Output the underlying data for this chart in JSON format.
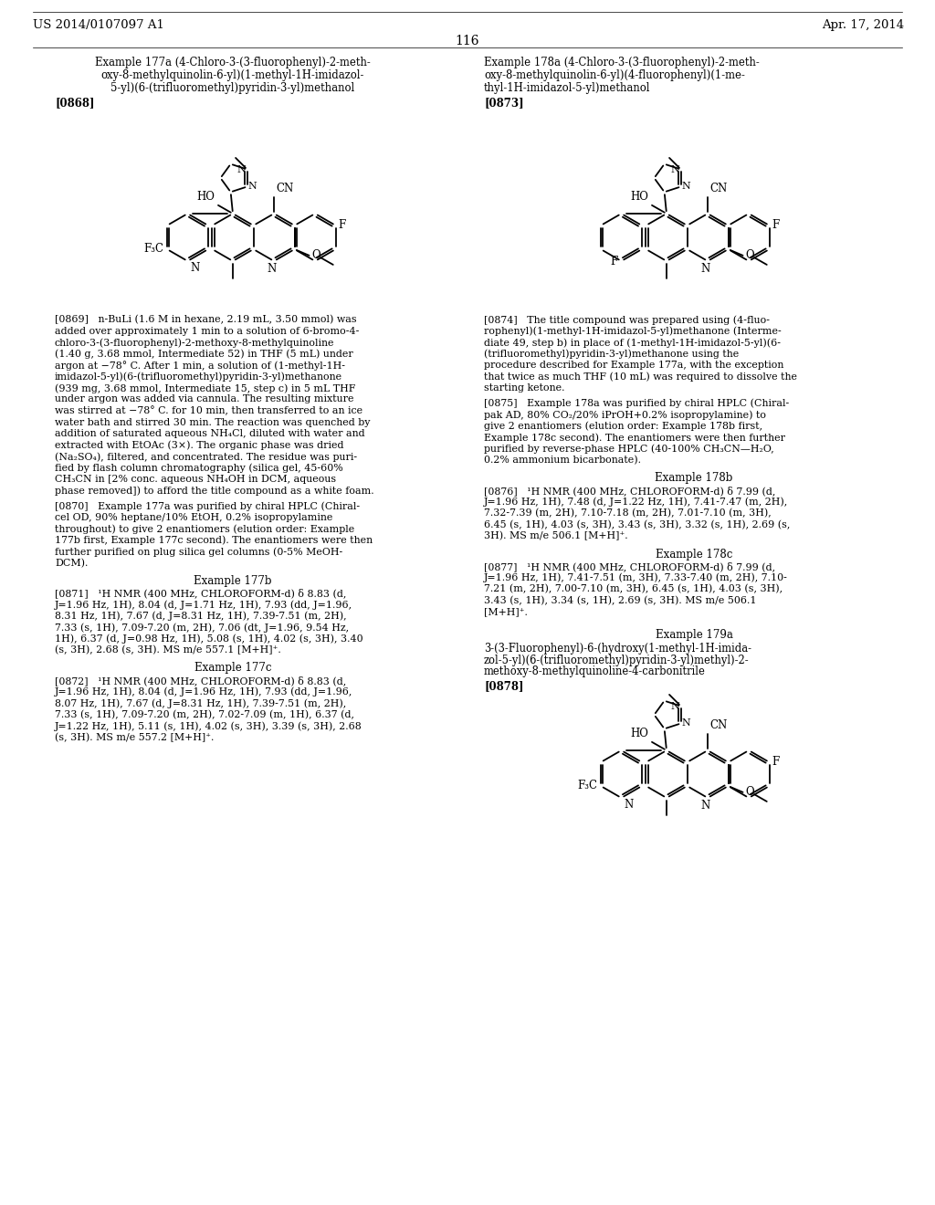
{
  "bg_color": "#ffffff",
  "header_left": "US 2014/0107097 A1",
  "header_right": "Apr. 17, 2014",
  "page_number": "116",
  "left_title_lines": [
    "Example 177a (4-Chloro-3-(3-fluorophenyl)-2-meth-",
    "oxy-8-methylquinolin-6-yl)(1-methyl-1H-imidazol-",
    "5-yl)(6-(trifluoromethyl)pyridin-3-yl)methanol"
  ],
  "left_tag": "[0868]",
  "right_title_lines": [
    "Example 178a (4-Chloro-3-(3-fluorophenyl)-2-meth-",
    "oxy-8-methylquinolin-6-yl)(4-fluorophenyl)(1-me-",
    "thyl-1H-imidazol-5-yl)methanol"
  ],
  "right_tag": "[0873]",
  "para_0869_lines": [
    "[0869]   n-BuLi (1.6 M in hexane, 2.19 mL, 3.50 mmol) was",
    "added over approximately 1 min to a solution of 6-bromo-4-",
    "chloro-3-(3-fluorophenyl)-2-methoxy-8-methylquinoline",
    "(1.40 g, 3.68 mmol, Intermediate 52) in THF (5 mL) under",
    "argon at −78° C. After 1 min, a solution of (1-methyl-1H-",
    "imidazol-5-yl)(6-(trifluoromethyl)pyridin-3-yl)methanone",
    "(939 mg, 3.68 mmol, Intermediate 15, step c) in 5 mL THF",
    "under argon was added via cannula. The resulting mixture",
    "was stirred at −78° C. for 10 min, then transferred to an ice",
    "water bath and stirred 30 min. The reaction was quenched by",
    "addition of saturated aqueous NH₄Cl, diluted with water and",
    "extracted with EtOAc (3×). The organic phase was dried",
    "(Na₂SO₄), filtered, and concentrated. The residue was puri-",
    "fied by flash column chromatography (silica gel, 45-60%",
    "CH₃CN in [2% conc. aqueous NH₄OH in DCM, aqueous",
    "phase removed]) to afford the title compound as a white foam."
  ],
  "para_0870_lines": [
    "[0870]   Example 177a was purified by chiral HPLC (Chiral-",
    "cel OD, 90% heptane/10% EtOH, 0.2% isopropylamine",
    "throughout) to give 2 enantiomers (elution order: Example",
    "177b first, Example 177c second). The enantiomers were then",
    "further purified on plug silica gel columns (0-5% MeOH-",
    "DCM)."
  ],
  "ex177b_title": "Example 177b",
  "para_0871_lines": [
    "[0871]   ¹H NMR (400 MHz, CHLOROFORM-d) δ 8.83 (d,",
    "J=1.96 Hz, 1H), 8.04 (d, J=1.71 Hz, 1H), 7.93 (dd, J=1.96,",
    "8.31 Hz, 1H), 7.67 (d, J=8.31 Hz, 1H), 7.39-7.51 (m, 2H),",
    "7.33 (s, 1H), 7.09-7.20 (m, 2H), 7.06 (dt, J=1.96, 9.54 Hz,",
    "1H), 6.37 (d, J=0.98 Hz, 1H), 5.08 (s, 1H), 4.02 (s, 3H), 3.40",
    "(s, 3H), 2.68 (s, 3H). MS m/e 557.1 [M+H]⁺."
  ],
  "ex177c_title": "Example 177c",
  "para_0872_lines": [
    "[0872]   ¹H NMR (400 MHz, CHLOROFORM-d) δ 8.83 (d,",
    "J=1.96 Hz, 1H), 8.04 (d, J=1.96 Hz, 1H), 7.93 (dd, J=1.96,",
    "8.07 Hz, 1H), 7.67 (d, J=8.31 Hz, 1H), 7.39-7.51 (m, 2H),",
    "7.33 (s, 1H), 7.09-7.20 (m, 2H), 7.02-7.09 (m, 1H), 6.37 (d,",
    "J=1.22 Hz, 1H), 5.11 (s, 1H), 4.02 (s, 3H), 3.39 (s, 3H), 2.68",
    "(s, 3H). MS m/e 557.2 [M+H]⁺."
  ],
  "para_0874_lines": [
    "[0874]   The title compound was prepared using (4-fluo-",
    "rophenyl)(1-methyl-1H-imidazol-5-yl)methanone (Interme-",
    "diate 49, step b) in place of (1-methyl-1H-imidazol-5-yl)(6-",
    "(trifluoromethyl)pyridin-3-yl)methanone using the",
    "procedure described for Example 177a, with the exception",
    "that twice as much THF (10 mL) was required to dissolve the",
    "starting ketone."
  ],
  "para_0875_lines": [
    "[0875]   Example 178a was purified by chiral HPLC (Chiral-",
    "pak AD, 80% CO₂/20% iPrOH+0.2% isopropylamine) to",
    "give 2 enantiomers (elution order: Example 178b first,",
    "Example 178c second). The enantiomers were then further",
    "purified by reverse-phase HPLC (40-100% CH₃CN—H₂O,",
    "0.2% ammonium bicarbonate)."
  ],
  "ex178b_title": "Example 178b",
  "para_0876_lines": [
    "[0876]   ¹H NMR (400 MHz, CHLOROFORM-d) δ 7.99 (d,",
    "J=1.96 Hz, 1H), 7.48 (d, J=1.22 Hz, 1H), 7.41-7.47 (m, 2H),",
    "7.32-7.39 (m, 2H), 7.10-7.18 (m, 2H), 7.01-7.10 (m, 3H),",
    "6.45 (s, 1H), 4.03 (s, 3H), 3.43 (s, 3H), 3.32 (s, 1H), 2.69 (s,",
    "3H). MS m/e 506.1 [M+H]⁺."
  ],
  "ex178c_title": "Example 178c",
  "para_0877_lines": [
    "[0877]   ¹H NMR (400 MHz, CHLOROFORM-d) δ 7.99 (d,",
    "J=1.96 Hz, 1H), 7.41-7.51 (m, 3H), 7.33-7.40 (m, 2H), 7.10-",
    "7.21 (m, 2H), 7.00-7.10 (m, 3H), 6.45 (s, 1H), 4.03 (s, 3H),",
    "3.43 (s, 1H), 3.34 (s, 1H), 2.69 (s, 3H). MS m/e 506.1",
    "[M+H]⁺."
  ],
  "ex179a_title": "Example 179a",
  "ex179a_subtitle_lines": [
    "3-(3-Fluorophenyl)-6-(hydroxy(1-methyl-1H-imida-",
    "zol-5-yl)(6-(trifluoromethyl)pyridin-3-yl)methyl)-2-",
    "methoxy-8-methylquinoline-4-carbonitrile"
  ],
  "para_0878_tag": "[0878]"
}
